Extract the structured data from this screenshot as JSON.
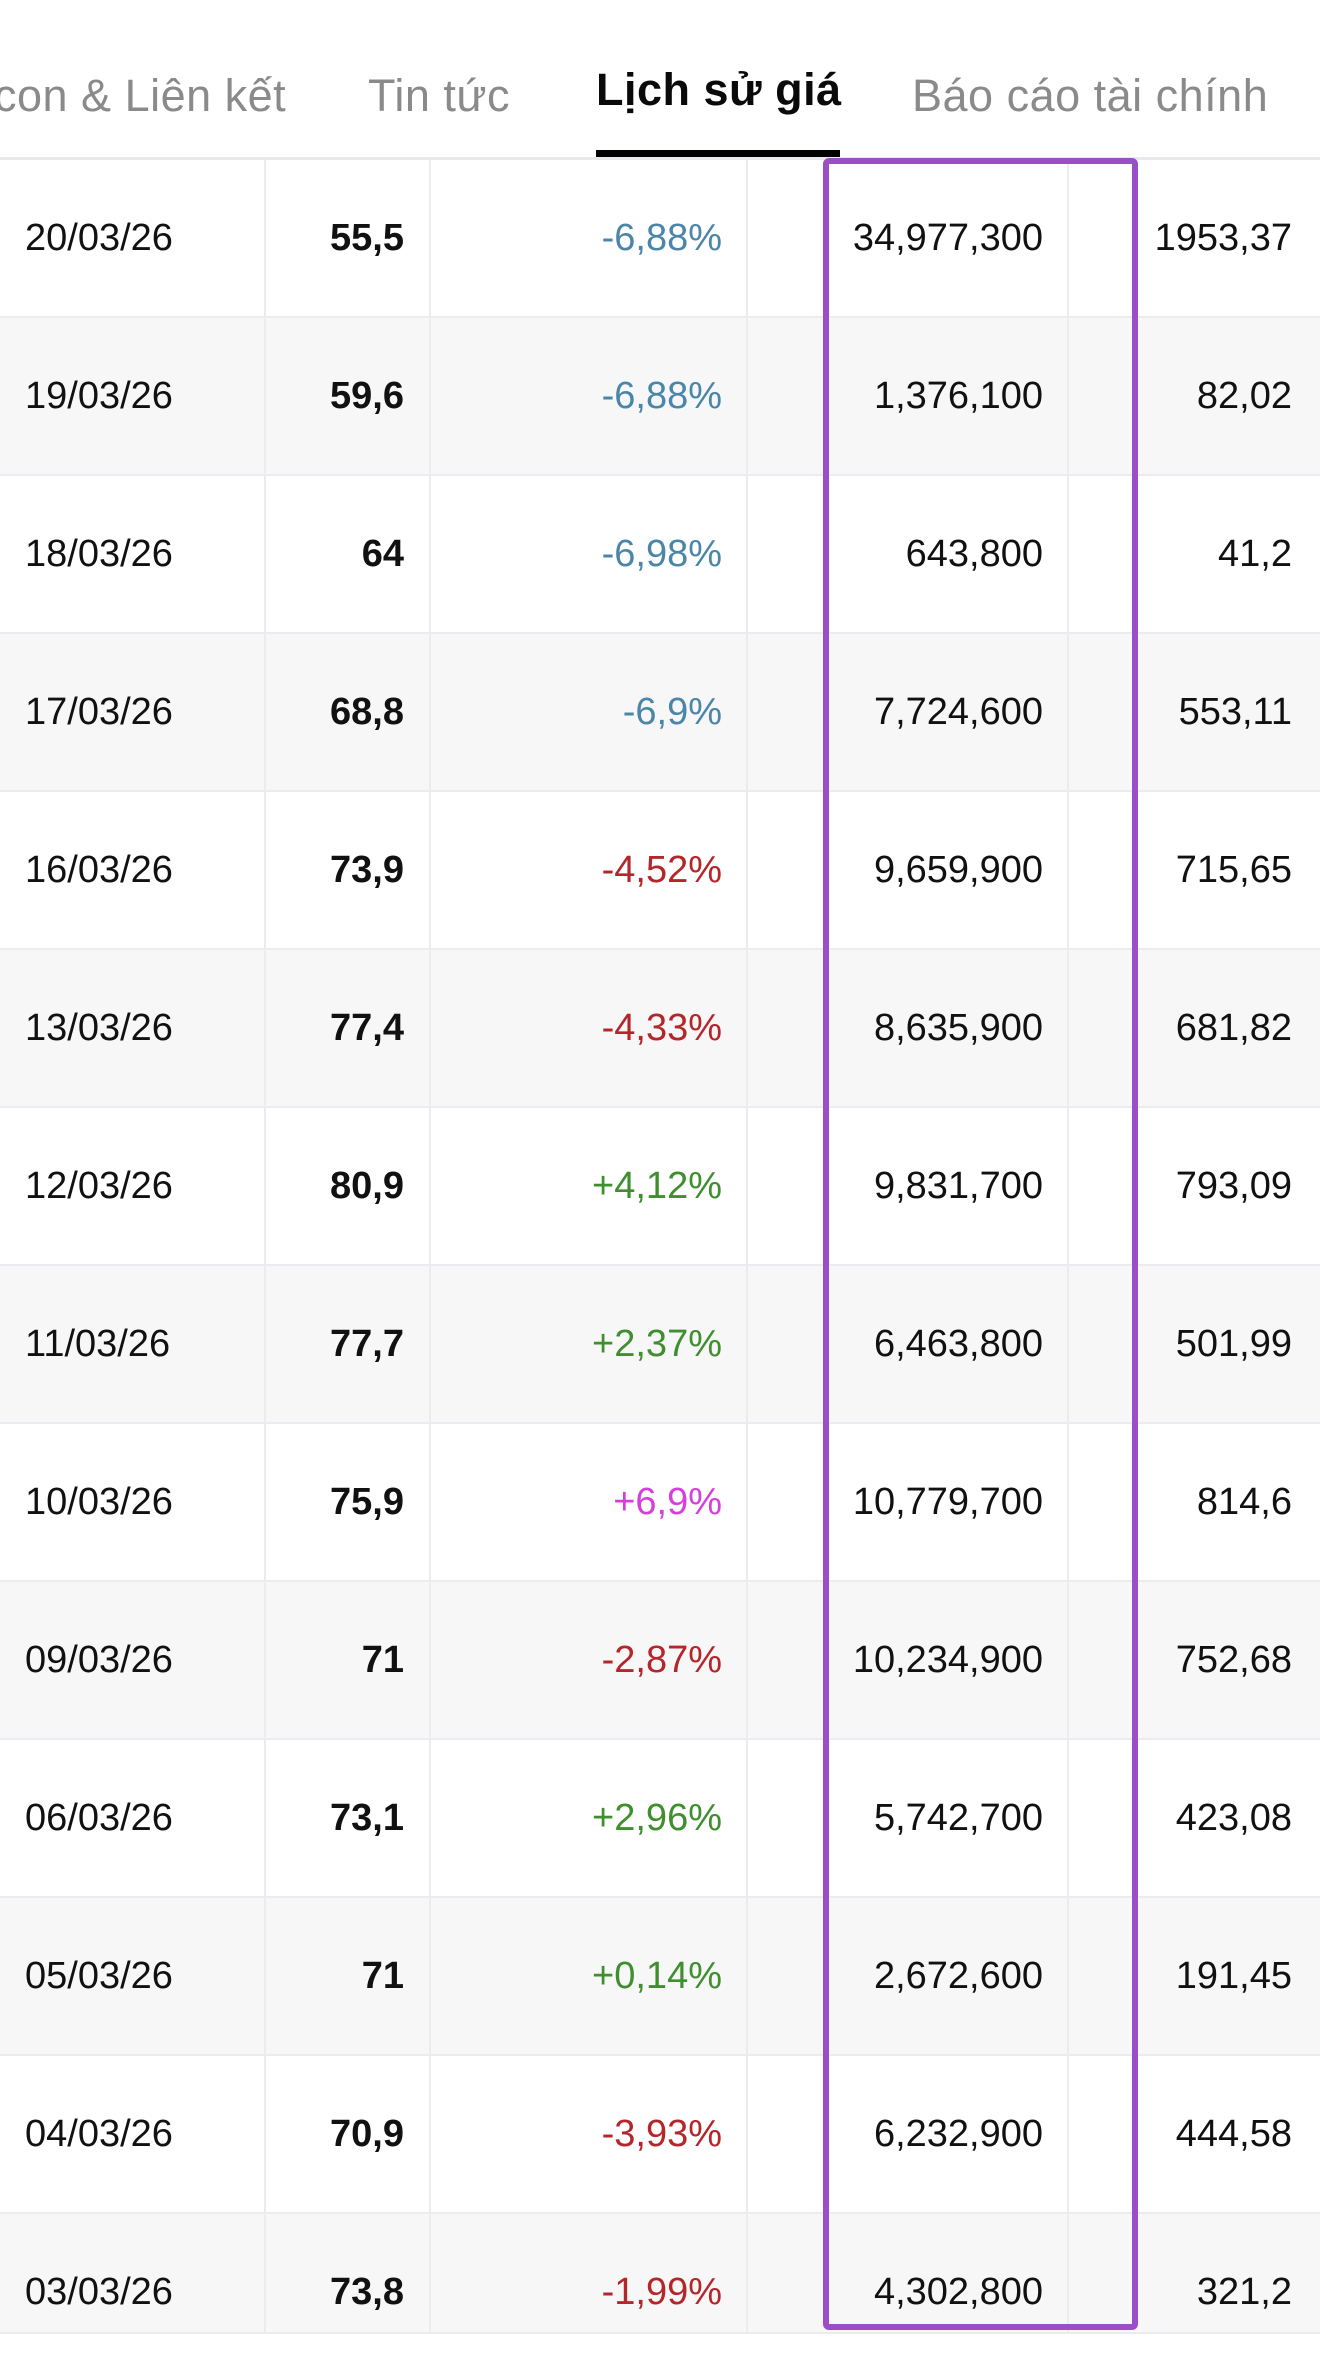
{
  "tabs": [
    {
      "label": "con & Liên kết",
      "active": false
    },
    {
      "label": "Tin tức",
      "active": false
    },
    {
      "label": "Lịch sử giá",
      "active": true
    },
    {
      "label": "Báo cáo tài chính",
      "active": false
    }
  ],
  "colors": {
    "down_blue": "#4b86a8",
    "down_red": "#b3272b",
    "up_green": "#3f8f2e",
    "ceiling_magenta": "#d63fd9",
    "highlight": "#9b4fc7"
  },
  "rows": [
    {
      "date": "20/03/26",
      "price": "55,5",
      "change": "-6,88%",
      "change_type": "floor",
      "volume": "34,977,300",
      "value": "1953,37"
    },
    {
      "date": "19/03/26",
      "price": "59,6",
      "change": "-6,88%",
      "change_type": "floor",
      "volume": "1,376,100",
      "value": "82,02"
    },
    {
      "date": "18/03/26",
      "price": "64",
      "change": "-6,98%",
      "change_type": "floor",
      "volume": "643,800",
      "value": "41,2"
    },
    {
      "date": "17/03/26",
      "price": "68,8",
      "change": "-6,9%",
      "change_type": "floor",
      "volume": "7,724,600",
      "value": "553,11"
    },
    {
      "date": "16/03/26",
      "price": "73,9",
      "change": "-4,52%",
      "change_type": "down",
      "volume": "9,659,900",
      "value": "715,65"
    },
    {
      "date": "13/03/26",
      "price": "77,4",
      "change": "-4,33%",
      "change_type": "down",
      "volume": "8,635,900",
      "value": "681,82"
    },
    {
      "date": "12/03/26",
      "price": "80,9",
      "change": "+4,12%",
      "change_type": "up",
      "volume": "9,831,700",
      "value": "793,09"
    },
    {
      "date": "11/03/26",
      "price": "77,7",
      "change": "+2,37%",
      "change_type": "up",
      "volume": "6,463,800",
      "value": "501,99"
    },
    {
      "date": "10/03/26",
      "price": "75,9",
      "change": "+6,9%",
      "change_type": "ceiling",
      "volume": "10,779,700",
      "value": "814,6"
    },
    {
      "date": "09/03/26",
      "price": "71",
      "change": "-2,87%",
      "change_type": "down",
      "volume": "10,234,900",
      "value": "752,68"
    },
    {
      "date": "06/03/26",
      "price": "73,1",
      "change": "+2,96%",
      "change_type": "up",
      "volume": "5,742,700",
      "value": "423,08"
    },
    {
      "date": "05/03/26",
      "price": "71",
      "change": "+0,14%",
      "change_type": "up",
      "volume": "2,672,600",
      "value": "191,45"
    },
    {
      "date": "04/03/26",
      "price": "70,9",
      "change": "-3,93%",
      "change_type": "down",
      "volume": "6,232,900",
      "value": "444,58"
    },
    {
      "date": "03/03/26",
      "price": "73,8",
      "change": "-1,99%",
      "change_type": "down",
      "volume": "4,302,800",
      "value": "321,2"
    }
  ]
}
